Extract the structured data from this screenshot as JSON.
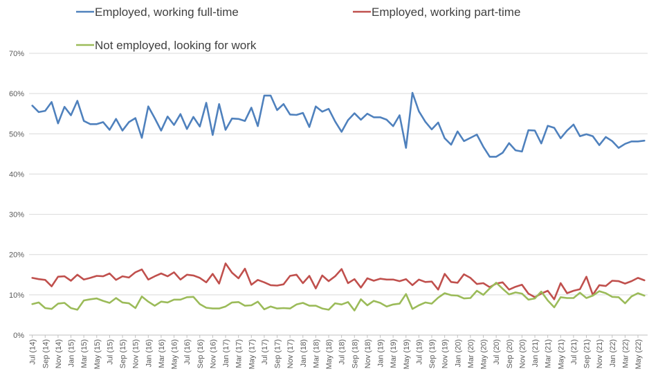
{
  "chart_data": {
    "type": "line",
    "title": "",
    "xlabel": "",
    "ylabel": "",
    "ylim": [
      0,
      70
    ],
    "y_ticks": [
      "0%",
      "10%",
      "20%",
      "30%",
      "40%",
      "50%",
      "60%",
      "70%"
    ],
    "y_tick_values": [
      0,
      10,
      20,
      30,
      40,
      50,
      60,
      70
    ],
    "grid": "horizontal",
    "legend_position": "top",
    "x_tick_every": 2,
    "categories": [
      "Jul (14)",
      "Aug (14)",
      "Sep (14)",
      "Oct (14)",
      "Nov (14)",
      "Dec (14)",
      "Jan (15)",
      "Feb (15)",
      "Mar (15)",
      "Apr (15)",
      "May (15)",
      "Jun (15)",
      "Jul (15)",
      "Aug (15)",
      "Sep (15)",
      "Oct (15)",
      "Nov (15)",
      "Dec (15)",
      "Jan (16)",
      "Feb (16)",
      "Mar (16)",
      "Apr (16)",
      "May (16)",
      "Jun (16)",
      "Jul (16)",
      "Aug (16)",
      "Sep (16)",
      "Oct (16)",
      "Nov (16)",
      "Dec (16)",
      "Jan (17)",
      "Feb (17)",
      "Mar (17)",
      "Apr (17)",
      "May (17)",
      "Jun (17)",
      "Jul (17)",
      "Aug (17)",
      "Sep (17)",
      "Oct (17)",
      "Nov (17)",
      "Dec (17)",
      "Jan (18)",
      "Feb (18)",
      "Mar (18)",
      "Apr (18)",
      "May (18)",
      "Jun (18)",
      "Jul (18)",
      "Aug (18)",
      "Sep (18)",
      "Oct (18)",
      "Nov (18)",
      "Dec (18)",
      "Jan (19)",
      "Feb (19)",
      "Mar (19)",
      "Apr (19)",
      "May (19)",
      "Jun (19)",
      "Jul (19)",
      "Aug (19)",
      "Sep (19)",
      "Oct (19)",
      "Nov (19)",
      "Dec (19)",
      "Jan (20)",
      "Feb (20)",
      "Mar (20)",
      "Apr (20)",
      "May (20)",
      "Jun (20)",
      "Jul (20)",
      "Aug (20)",
      "Sep (20)",
      "Oct (20)",
      "Nov (20)",
      "Dec (20)",
      "Jan (21)",
      "Feb (21)",
      "Mar (21)",
      "Apr (21)",
      "May (21)",
      "Jun (21)",
      "Jul (21)",
      "Aug (21)",
      "Sep (21)",
      "Oct (21)",
      "Nov (21)",
      "Dec (21)",
      "Jan (22)",
      "Feb (22)",
      "Mar (22)",
      "Apr (22)",
      "May (22)",
      "Jun (22)"
    ],
    "series": [
      {
        "name": "Employed, working full-time",
        "color": "#4F81BD",
        "values": [
          57.0,
          55.4,
          55.7,
          57.9,
          52.6,
          56.7,
          54.6,
          58.2,
          53.2,
          52.4,
          52.4,
          52.9,
          51.0,
          53.7,
          50.8,
          52.9,
          53.9,
          49.0,
          56.8,
          53.9,
          50.8,
          54.3,
          52.2,
          54.9,
          51.2,
          54.2,
          51.8,
          57.7,
          49.7,
          57.4,
          51.0,
          53.8,
          53.7,
          53.2,
          56.5,
          51.9,
          59.5,
          59.5,
          55.9,
          57.4,
          54.8,
          54.7,
          55.2,
          51.7,
          56.8,
          55.5,
          56.2,
          53.1,
          50.5,
          53.4,
          55.1,
          53.5,
          55.0,
          54.1,
          54.1,
          53.5,
          51.9,
          54.6,
          46.5,
          60.2,
          55.6,
          53.0,
          51.1,
          52.8,
          48.9,
          47.3,
          50.6,
          48.2,
          49.0,
          49.8,
          46.8,
          44.3,
          44.3,
          45.3,
          47.7,
          45.9,
          45.6,
          50.9,
          50.8,
          47.6,
          52.0,
          51.5,
          48.9,
          50.8,
          52.3,
          49.4,
          49.9,
          49.4,
          47.2,
          49.2,
          48.2,
          46.5,
          47.5,
          48.1,
          48.1,
          48.3
        ]
      },
      {
        "name": "Employed, working part-time",
        "color": "#C0504D",
        "values": [
          14.2,
          13.9,
          13.7,
          12.1,
          14.5,
          14.6,
          13.5,
          15.0,
          13.8,
          14.2,
          14.7,
          14.6,
          15.3,
          13.7,
          14.6,
          14.3,
          15.6,
          16.3,
          13.8,
          14.6,
          15.3,
          14.6,
          15.6,
          13.8,
          15.0,
          14.8,
          14.2,
          13.1,
          15.2,
          12.8,
          17.8,
          15.5,
          14.1,
          16.5,
          12.5,
          13.7,
          13.1,
          12.4,
          12.3,
          12.6,
          14.7,
          15.0,
          12.9,
          14.7,
          11.6,
          14.8,
          13.4,
          14.6,
          16.4,
          12.9,
          13.9,
          11.8,
          14.1,
          13.5,
          14.0,
          13.8,
          13.8,
          13.4,
          13.9,
          12.4,
          13.8,
          13.2,
          13.3,
          11.3,
          15.2,
          13.2,
          13.0,
          15.1,
          14.2,
          12.7,
          12.9,
          11.9,
          12.8,
          13.1,
          11.3,
          12.0,
          12.5,
          10.3,
          9.4,
          10.3,
          11.0,
          8.9,
          12.9,
          10.4,
          11.0,
          11.4,
          14.5,
          10.0,
          12.4,
          12.2,
          13.5,
          13.4,
          12.8,
          13.4,
          14.2,
          13.6
        ]
      },
      {
        "name": "Not employed, looking for work",
        "color": "#9BBB59",
        "values": [
          7.7,
          8.1,
          6.7,
          6.5,
          7.8,
          8.0,
          6.7,
          6.3,
          8.6,
          8.9,
          9.1,
          8.5,
          8.0,
          9.2,
          8.1,
          7.9,
          6.7,
          9.6,
          8.3,
          7.3,
          8.3,
          8.1,
          8.8,
          8.8,
          9.4,
          9.5,
          7.7,
          6.8,
          6.6,
          6.6,
          7.1,
          8.1,
          8.2,
          7.3,
          7.4,
          8.3,
          6.4,
          7.1,
          6.6,
          6.7,
          6.6,
          7.6,
          8.0,
          7.3,
          7.3,
          6.6,
          6.3,
          7.9,
          7.6,
          8.2,
          6.1,
          8.9,
          7.4,
          8.5,
          8.0,
          7.1,
          7.6,
          7.8,
          10.2,
          6.5,
          7.4,
          8.1,
          7.8,
          9.3,
          10.4,
          9.9,
          9.8,
          9.1,
          9.2,
          11.0,
          10.0,
          11.6,
          13.0,
          11.5,
          10.1,
          10.6,
          10.3,
          8.8,
          9.1,
          10.8,
          8.6,
          6.9,
          9.4,
          9.2,
          9.2,
          10.5,
          9.2,
          9.8,
          10.9,
          10.4,
          9.5,
          9.4,
          7.9,
          9.6,
          10.4,
          9.8
        ]
      }
    ],
    "colors": {
      "axis": "#BFBFBF",
      "grid": "#D9D9D9",
      "tick_text": "#595959"
    }
  }
}
